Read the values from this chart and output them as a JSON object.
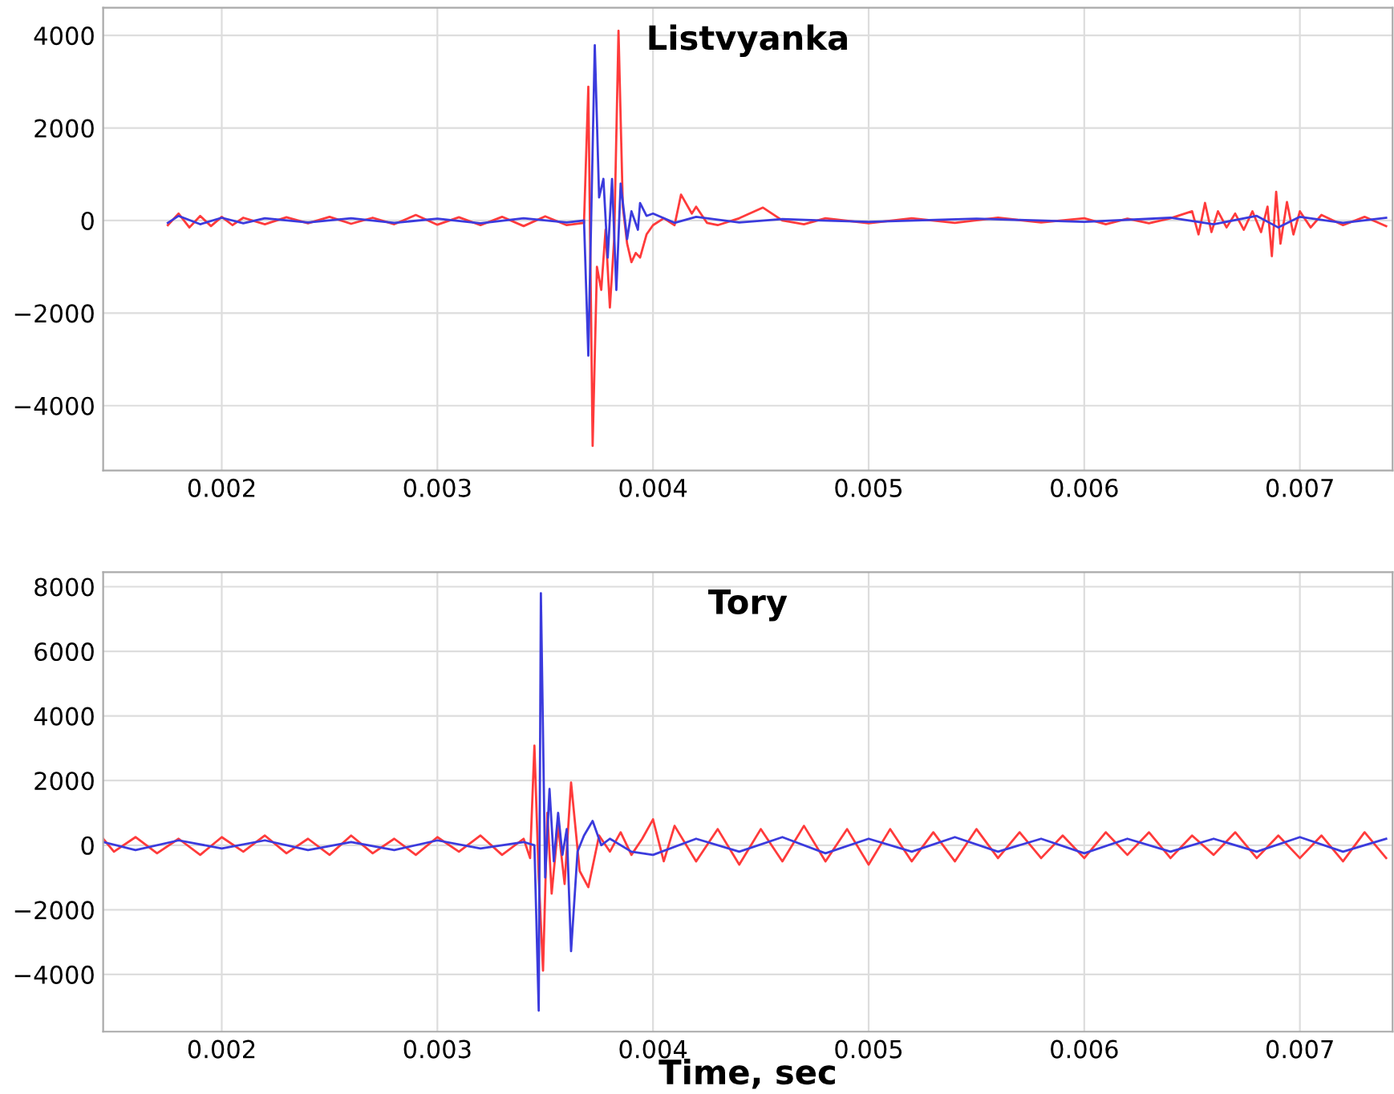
{
  "chart_data": [
    {
      "type": "line",
      "title": "Listvyanka",
      "xlim": [
        0.00145,
        0.00743
      ],
      "ylim": [
        -5400,
        4600
      ],
      "xticks": [
        0.002,
        0.003,
        0.004,
        0.005,
        0.006,
        0.007
      ],
      "yticks": [
        -4000,
        -2000,
        0,
        2000,
        4000
      ],
      "grid": true,
      "series": [
        {
          "color": "#ff3b3b",
          "x": [
            0.00175,
            0.0018,
            0.00185,
            0.0019,
            0.00195,
            0.002,
            0.00205,
            0.0021,
            0.0022,
            0.0023,
            0.0024,
            0.0025,
            0.0026,
            0.0027,
            0.0028,
            0.0029,
            0.003,
            0.0031,
            0.0032,
            0.0033,
            0.0034,
            0.0035,
            0.0036,
            0.00368,
            0.0037,
            0.00372,
            0.00374,
            0.00376,
            0.00378,
            0.0038,
            0.00382,
            0.00384,
            0.00386,
            0.00388,
            0.0039,
            0.00392,
            0.00394,
            0.00397,
            0.004,
            0.00405,
            0.0041,
            0.00413,
            0.00418,
            0.0042,
            0.00425,
            0.0043,
            0.0044,
            0.00451,
            0.0046,
            0.0047,
            0.0048,
            0.005,
            0.0052,
            0.0054,
            0.0056,
            0.0058,
            0.006,
            0.0061,
            0.0062,
            0.0063,
            0.0064,
            0.0065,
            0.00653,
            0.00656,
            0.00659,
            0.00662,
            0.00666,
            0.0067,
            0.00674,
            0.00678,
            0.00682,
            0.00685,
            0.00687,
            0.00689,
            0.00691,
            0.00694,
            0.00697,
            0.007,
            0.00705,
            0.0071,
            0.0072,
            0.0073,
            0.0074
          ],
          "values": [
            -100,
            150,
            -150,
            100,
            -120,
            80,
            -100,
            60,
            -80,
            70,
            -60,
            80,
            -70,
            60,
            -80,
            120,
            -90,
            70,
            -100,
            80,
            -120,
            90,
            -100,
            -50,
            2890,
            -4870,
            -1000,
            -1500,
            -200,
            -1880,
            -400,
            4100,
            300,
            -500,
            -900,
            -700,
            -800,
            -300,
            -100,
            50,
            -100,
            560,
            150,
            300,
            -50,
            -100,
            50,
            280,
            0,
            -80,
            50,
            -60,
            50,
            -50,
            60,
            -40,
            50,
            -80,
            40,
            -60,
            50,
            200,
            -300,
            380,
            -250,
            200,
            -150,
            150,
            -200,
            200,
            -250,
            300,
            -770,
            620,
            -500,
            400,
            -300,
            200,
            -150,
            120,
            -100,
            80,
            -120
          ]
        },
        {
          "color": "#3b3bdd",
          "x": [
            0.00175,
            0.0018,
            0.0019,
            0.002,
            0.0021,
            0.0022,
            0.0024,
            0.0026,
            0.0028,
            0.003,
            0.0032,
            0.0034,
            0.0036,
            0.00368,
            0.0037,
            0.00373,
            0.00375,
            0.00377,
            0.00379,
            0.00381,
            0.00383,
            0.00385,
            0.00388,
            0.0039,
            0.00393,
            0.00394,
            0.00397,
            0.004,
            0.0041,
            0.0042,
            0.0044,
            0.0046,
            0.005,
            0.0055,
            0.006,
            0.0064,
            0.0066,
            0.0068,
            0.0069,
            0.007,
            0.0072,
            0.0074
          ],
          "values": [
            -50,
            100,
            -80,
            60,
            -60,
            50,
            -40,
            50,
            -50,
            40,
            -60,
            50,
            -40,
            0,
            -2920,
            3790,
            500,
            900,
            -800,
            900,
            -1500,
            800,
            -400,
            200,
            -200,
            380,
            100,
            150,
            -50,
            80,
            -40,
            30,
            -30,
            40,
            -30,
            60,
            -80,
            100,
            -150,
            80,
            -50,
            60
          ]
        }
      ]
    },
    {
      "type": "line",
      "title": "Tory",
      "xlabel": "Time, sec",
      "xlim": [
        0.00145,
        0.00743
      ],
      "ylim": [
        -5770,
        8450
      ],
      "xticks": [
        0.002,
        0.003,
        0.004,
        0.005,
        0.006,
        0.007
      ],
      "yticks": [
        -4000,
        -2000,
        0,
        2000,
        4000,
        6000,
        8000
      ],
      "grid": true,
      "series": [
        {
          "color": "#ff3b3b",
          "x": [
            0.00145,
            0.0015,
            0.0016,
            0.0017,
            0.0018,
            0.0019,
            0.002,
            0.0021,
            0.0022,
            0.0023,
            0.0024,
            0.0025,
            0.0026,
            0.0027,
            0.0028,
            0.0029,
            0.003,
            0.0031,
            0.0032,
            0.0033,
            0.0034,
            0.00343,
            0.00345,
            0.00347,
            0.00349,
            0.00351,
            0.00353,
            0.00356,
            0.00359,
            0.00362,
            0.00366,
            0.0037,
            0.00375,
            0.0038,
            0.00385,
            0.0039,
            0.00395,
            0.004,
            0.00405,
            0.0041,
            0.0042,
            0.0043,
            0.0044,
            0.0045,
            0.0046,
            0.0047,
            0.0048,
            0.0049,
            0.005,
            0.0051,
            0.0052,
            0.0053,
            0.0054,
            0.0055,
            0.0056,
            0.0057,
            0.0058,
            0.0059,
            0.006,
            0.0061,
            0.0062,
            0.0063,
            0.0064,
            0.0065,
            0.0066,
            0.0067,
            0.0068,
            0.0069,
            0.007,
            0.0071,
            0.0072,
            0.0073,
            0.0074
          ],
          "values": [
            200,
            -200,
            250,
            -250,
            200,
            -300,
            250,
            -200,
            300,
            -250,
            200,
            -300,
            300,
            -250,
            200,
            -300,
            250,
            -200,
            300,
            -300,
            200,
            -400,
            3080,
            -1000,
            -3880,
            1000,
            -1500,
            600,
            -1200,
            1940,
            -800,
            -1300,
            300,
            -200,
            400,
            -300,
            200,
            800,
            -500,
            600,
            -500,
            500,
            -600,
            500,
            -500,
            600,
            -500,
            500,
            -600,
            500,
            -500,
            400,
            -500,
            500,
            -400,
            400,
            -400,
            300,
            -400,
            400,
            -300,
            400,
            -400,
            300,
            -300,
            400,
            -400,
            300,
            -400,
            300,
            -500,
            400,
            -400
          ]
        },
        {
          "color": "#3b3bdd",
          "x": [
            0.00145,
            0.0016,
            0.0018,
            0.002,
            0.0022,
            0.0024,
            0.0026,
            0.0028,
            0.003,
            0.0032,
            0.0034,
            0.00345,
            0.00347,
            0.00348,
            0.0035,
            0.00352,
            0.00354,
            0.00356,
            0.00358,
            0.0036,
            0.00362,
            0.00365,
            0.00368,
            0.00372,
            0.00376,
            0.0038,
            0.0039,
            0.004,
            0.0042,
            0.0044,
            0.0046,
            0.0048,
            0.005,
            0.0052,
            0.0054,
            0.0056,
            0.0058,
            0.006,
            0.0062,
            0.0064,
            0.0066,
            0.0068,
            0.007,
            0.0072,
            0.0074
          ],
          "values": [
            100,
            -150,
            150,
            -100,
            150,
            -150,
            100,
            -150,
            150,
            -100,
            100,
            0,
            -5120,
            7800,
            -1000,
            1740,
            -500,
            1000,
            -300,
            500,
            -3280,
            -200,
            300,
            750,
            0,
            200,
            -200,
            -300,
            200,
            -200,
            250,
            -250,
            200,
            -200,
            250,
            -200,
            200,
            -250,
            200,
            -200,
            200,
            -200,
            250,
            -200,
            200
          ]
        }
      ]
    }
  ]
}
